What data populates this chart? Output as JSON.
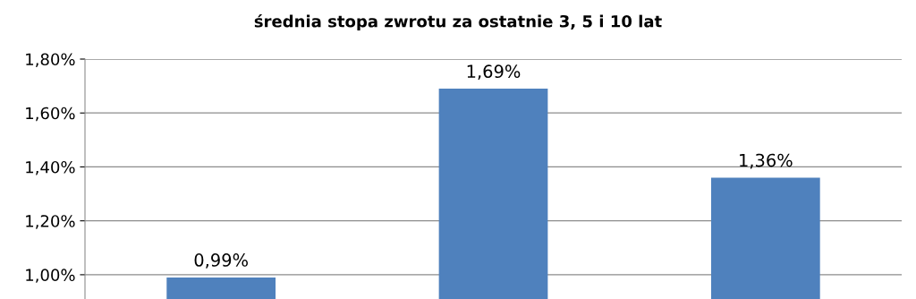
{
  "chart_data": {
    "type": "bar",
    "title": "średnia stopa zwrotu za ostatnie 3, 5 i 10 lat",
    "categories": [
      null,
      null,
      null
    ],
    "values": [
      0.99,
      1.69,
      1.36
    ],
    "color": "#4f81bd",
    "value_labels": [
      "0,99%",
      "1,69%",
      "1,36%"
    ],
    "ylim": [
      0.91,
      1.8
    ],
    "yticks": [
      {
        "value": 1.0,
        "label": "1,00%"
      },
      {
        "value": 1.2,
        "label": "1,20%"
      },
      {
        "value": 1.4,
        "label": "1,40%"
      },
      {
        "value": 1.6,
        "label": "1,60%"
      },
      {
        "value": 1.8,
        "label": "1,80%"
      }
    ],
    "grid": "y",
    "legend": false
  }
}
